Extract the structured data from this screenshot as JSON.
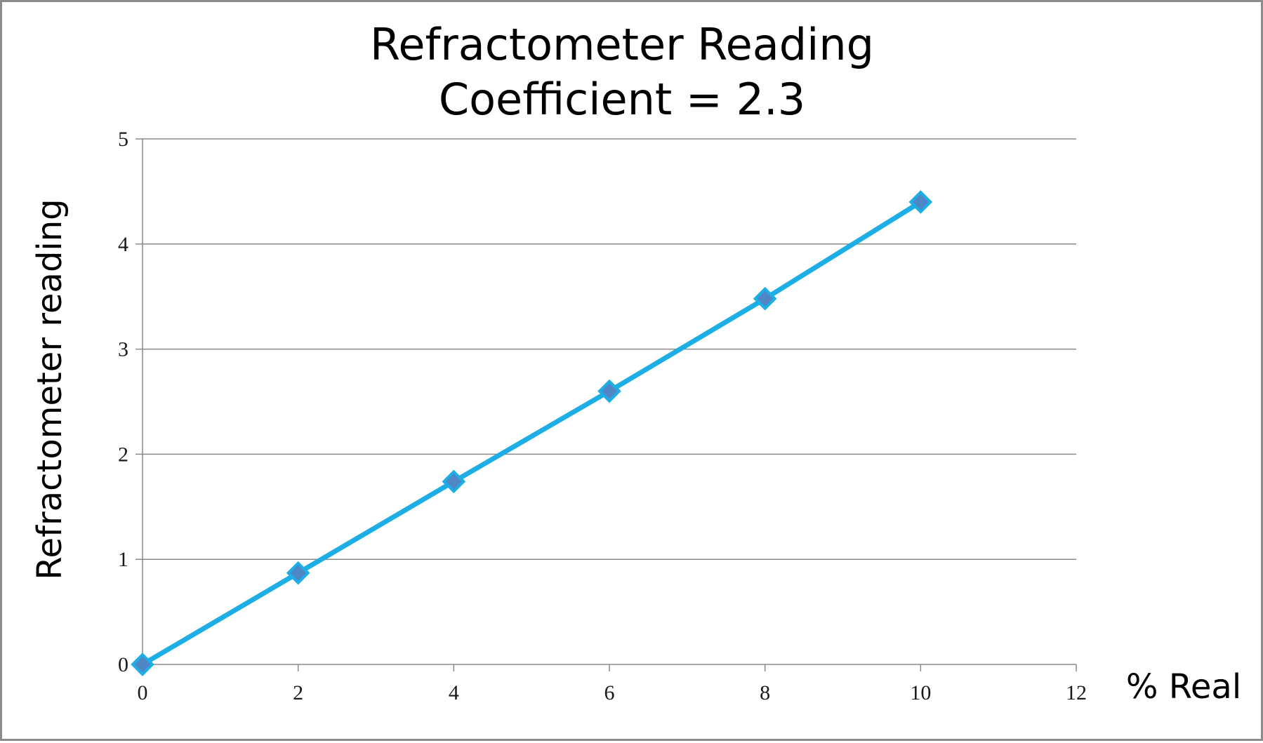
{
  "chart_data": {
    "type": "line",
    "title": "Refractometer Reading",
    "subtitle": "Coefficient = 2.3",
    "xlabel": "% Real",
    "ylabel": "Refractometer reading",
    "xlim": [
      0,
      12
    ],
    "ylim": [
      0,
      5
    ],
    "x_ticks": [
      0,
      2,
      4,
      6,
      8,
      10,
      12
    ],
    "y_ticks": [
      0,
      1,
      2,
      3,
      4,
      5
    ],
    "grid": "horizontal",
    "legend": "none",
    "series": [
      {
        "x": [
          0,
          2,
          4,
          6,
          8,
          10
        ],
        "values": [
          0,
          0.87,
          1.74,
          2.6,
          3.48,
          4.4
        ],
        "line_color": "#1eaee6",
        "marker": "diamond",
        "marker_color": "#4f86c6"
      }
    ]
  }
}
